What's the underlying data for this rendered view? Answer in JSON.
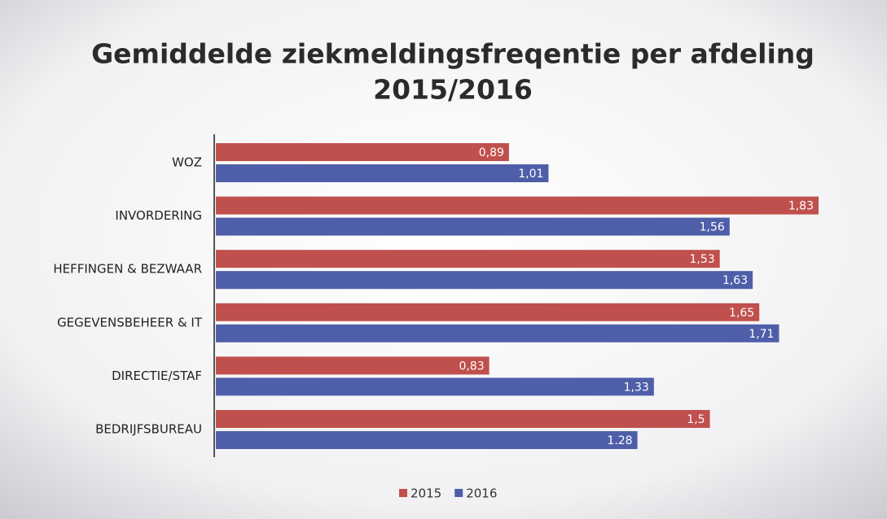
{
  "chart_data": {
    "type": "bar",
    "orientation": "horizontal",
    "title": "Gemiddelde ziekmeldingsfreqentie per afdeling",
    "subtitle": "2015/2016",
    "categories": [
      "WOZ",
      "INVORDERING",
      "HEFFINGEN & BEZWAAR",
      "GEGEVENSBEHEER & IT",
      "DIRECTIE/STAF",
      "BEDRIJFSBUREAU"
    ],
    "series": [
      {
        "name": "2015",
        "color": "#c0504d",
        "values": [
          0.89,
          1.83,
          1.53,
          1.65,
          0.83,
          1.5
        ],
        "value_labels": [
          "0,89",
          "1,83",
          "1,53",
          "1,65",
          "0,83",
          "1,5"
        ]
      },
      {
        "name": "2016",
        "color": "#4f5ea8",
        "values": [
          1.01,
          1.56,
          1.63,
          1.71,
          1.33,
          1.28
        ],
        "value_labels": [
          "1,01",
          "1,56",
          "1,63",
          "1,71",
          "1,33",
          "1.28"
        ]
      }
    ],
    "legend": "bottom"
  }
}
